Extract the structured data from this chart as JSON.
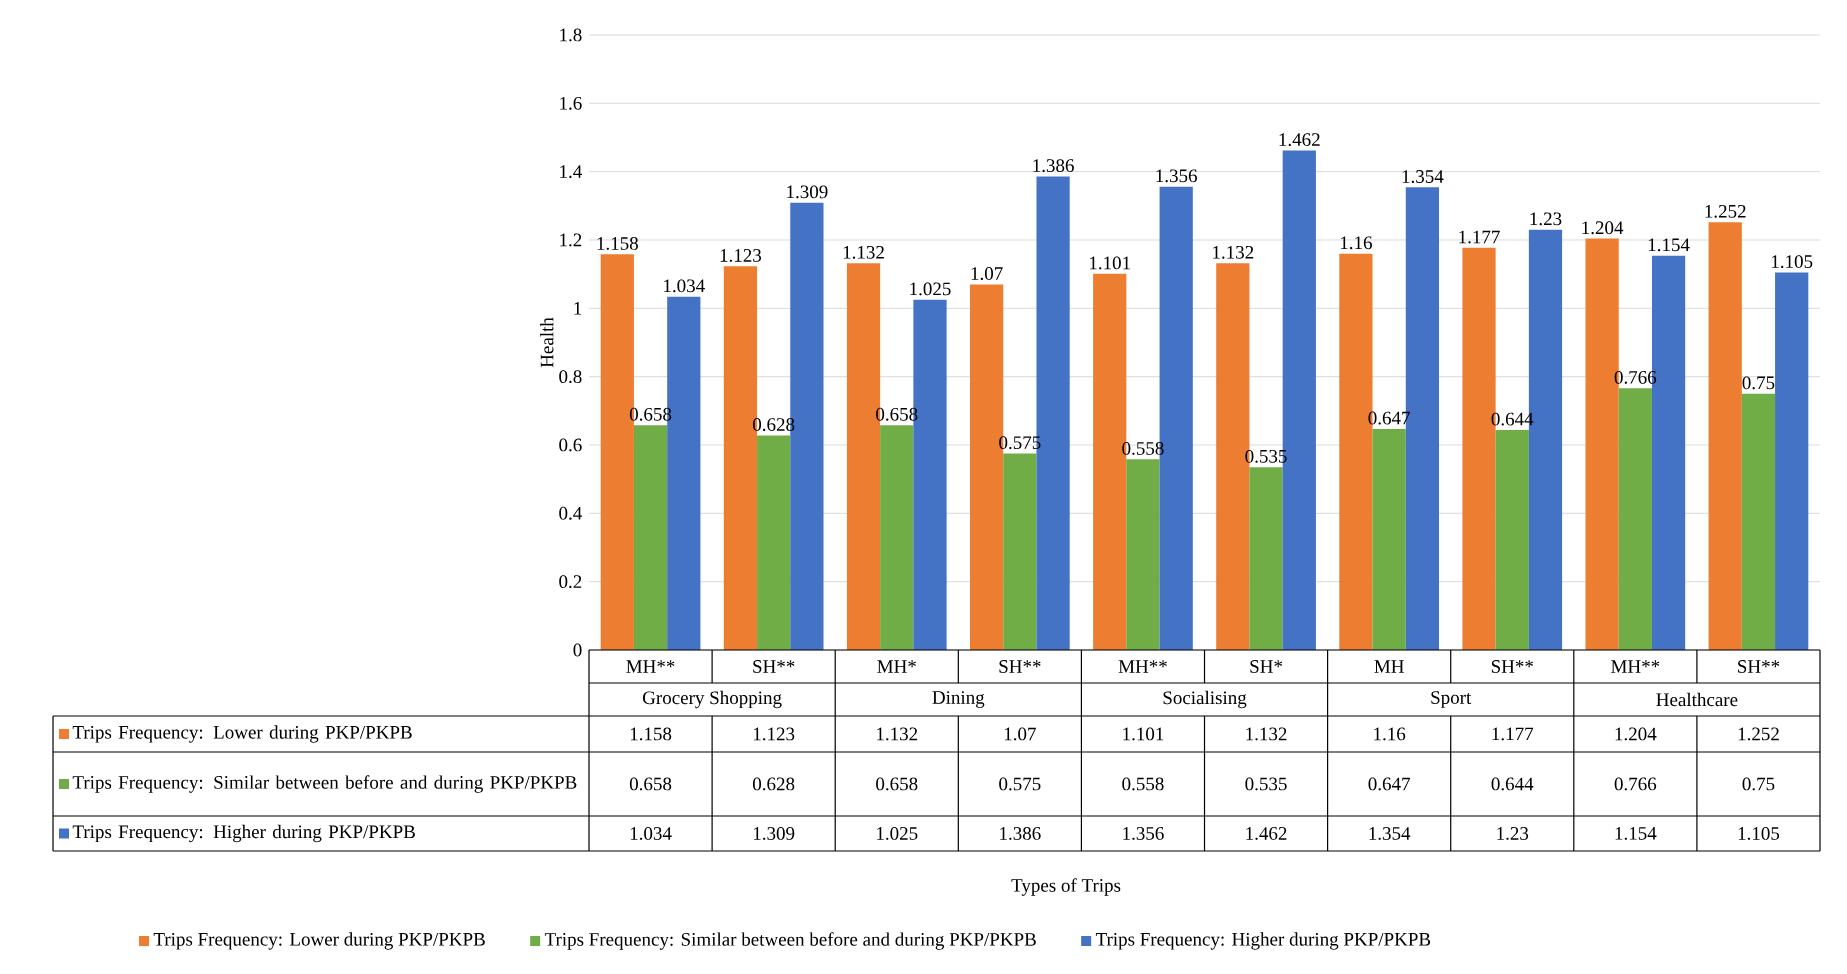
{
  "chart_data": {
    "type": "bar",
    "ylabel": "Health",
    "categories": [
      "MH**",
      "SH**",
      "MH*",
      "SH**",
      "MH**",
      "SH*",
      "MH",
      "SH**",
      "MH**",
      "SH**"
    ],
    "annotations": [
      "Grocery Shopping",
      "Dining",
      "Socialising",
      "Sport",
      "Healthcare",
      "Types of Trips"
    ],
    "series": [
      {
        "name": "Trips Frequency: Lower during PKP/PKPB",
        "color": "#ed7d31",
        "values": [
          1.158,
          1.123,
          1.132,
          1.07,
          1.101,
          1.132,
          1.16,
          1.177,
          1.204,
          1.252
        ],
        "value_labels": [
          "1.158",
          "1.123",
          "1.132",
          "1.07",
          "1.101",
          "1.132",
          "1.16",
          "1.177",
          "1.204",
          "1.252"
        ]
      },
      {
        "name": "Trips Frequency: Similar between before and during PKP/PKPB",
        "color": "#70ad47",
        "values": [
          0.658,
          0.628,
          0.658,
          0.575,
          0.558,
          0.535,
          0.647,
          0.644,
          0.766,
          0.75
        ],
        "value_labels": [
          "0.658",
          "0.628",
          "0.658",
          "0.575",
          "0.558",
          "0.535",
          "0.647",
          "0.644",
          "0.766",
          "0.75"
        ]
      },
      {
        "name": "Trips Frequency: Higher during PKP/PKPB",
        "color": "#4472c4",
        "values": [
          1.034,
          1.309,
          1.025,
          1.386,
          1.356,
          1.462,
          1.354,
          1.23,
          1.154,
          1.105
        ],
        "value_labels": [
          "1.034",
          "1.309",
          "1.025",
          "1.386",
          "1.356",
          "1.462",
          "1.354",
          "1.23",
          "1.154",
          "1.105"
        ]
      }
    ],
    "ylim": [
      0,
      1.8
    ],
    "yticks": [
      0,
      0.2,
      0.4,
      0.6,
      0.8,
      1,
      1.2,
      1.4,
      1.6,
      1.8
    ],
    "grid": "y",
    "legend": "bottom",
    "data_labels": true
  }
}
